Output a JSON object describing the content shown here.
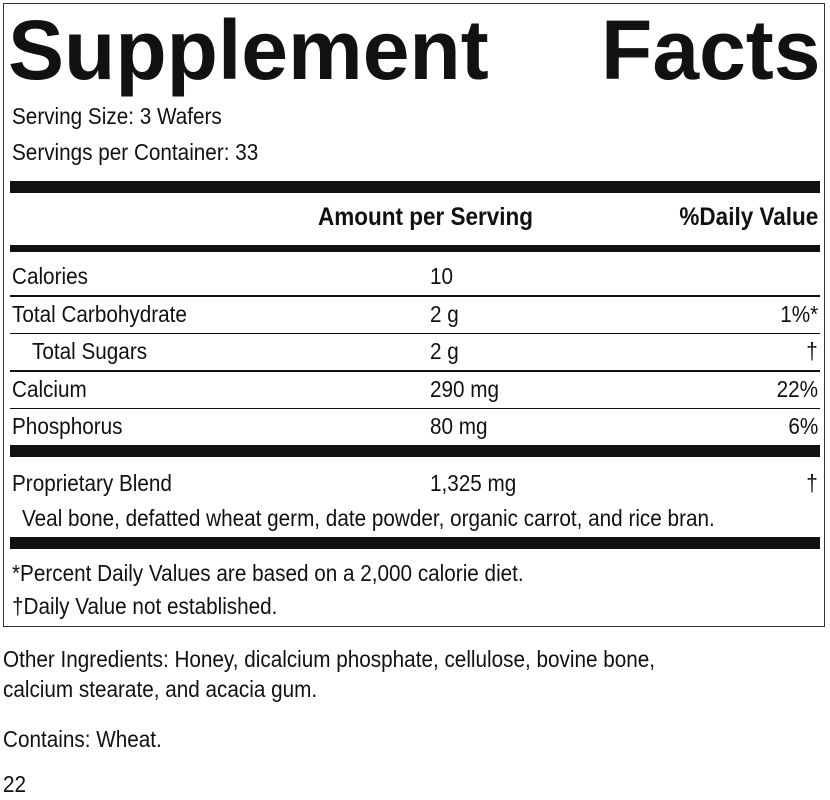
{
  "label": {
    "title": "Supplement Facts",
    "serving_size": "Serving Size: 3 Wafers",
    "servings_per_container": "Servings per Container: 33",
    "header": {
      "amount": "Amount per Serving",
      "daily_value": "%Daily Value"
    },
    "rows": [
      {
        "name": "Calories",
        "amount": "10"
      },
      {
        "name": "Total Carbohydrate",
        "amount": "2 g",
        "daily_value": "1%*"
      },
      {
        "name": "Total Sugars",
        "amount": "2 g",
        "daily_value": "†",
        "indent": true
      },
      {
        "name": "Calcium",
        "amount": "290 mg",
        "daily_value": "22%"
      },
      {
        "name": "Phosphorus",
        "amount": "80 mg",
        "daily_value": "6%"
      }
    ],
    "blend": {
      "name": "Proprietary Blend",
      "amount": "1,325 mg",
      "daily_value": "†",
      "ingredients": "Veal bone, defatted wheat germ, date powder, organic carrot, and rice bran."
    },
    "footnotes": [
      "*Percent Daily Values are based on a 2,000 calorie diet.",
      "†Daily Value not established."
    ]
  },
  "other_ingredients": [
    "Other Ingredients: Honey, dicalcium phosphate, cellulose, bovine bone,",
    "calcium stearate, and acacia gum."
  ],
  "contains": "Contains: Wheat.",
  "footer_number": "22"
}
